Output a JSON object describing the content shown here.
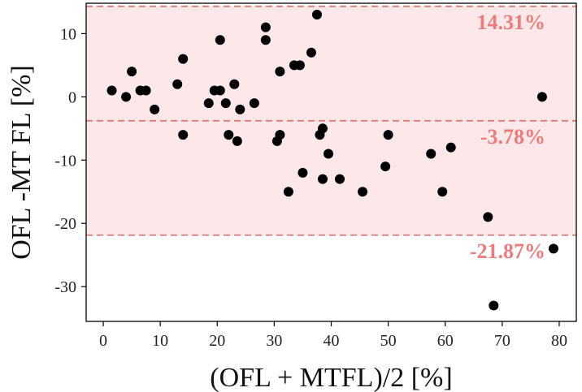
{
  "chart_data": {
    "type": "scatter",
    "title": "",
    "xlabel": "(OFL + MTFL)/2 [%]",
    "ylabel": "OFL -MT FL [%]",
    "xlim": [
      -3,
      83
    ],
    "ylim": [
      -35.5,
      14.8
    ],
    "xticks": [
      0,
      10,
      20,
      30,
      40,
      50,
      60,
      70,
      80
    ],
    "yticks": [
      10,
      0,
      -10,
      -20,
      -30
    ],
    "grid": false,
    "points": [
      {
        "x": 1.5,
        "y": 1
      },
      {
        "x": 4,
        "y": 0
      },
      {
        "x": 5,
        "y": 4
      },
      {
        "x": 6.5,
        "y": 1
      },
      {
        "x": 7.5,
        "y": 1
      },
      {
        "x": 9,
        "y": -2
      },
      {
        "x": 13,
        "y": 2
      },
      {
        "x": 14,
        "y": 6
      },
      {
        "x": 14,
        "y": -6
      },
      {
        "x": 18.5,
        "y": -1
      },
      {
        "x": 19.5,
        "y": 1
      },
      {
        "x": 20.5,
        "y": 1
      },
      {
        "x": 20.5,
        "y": 9
      },
      {
        "x": 21.5,
        "y": -1
      },
      {
        "x": 22,
        "y": -6
      },
      {
        "x": 23,
        "y": 2
      },
      {
        "x": 23.5,
        "y": -7
      },
      {
        "x": 24,
        "y": -2
      },
      {
        "x": 26.5,
        "y": -1
      },
      {
        "x": 28.5,
        "y": 11
      },
      {
        "x": 28.5,
        "y": 9
      },
      {
        "x": 30.5,
        "y": -7
      },
      {
        "x": 31,
        "y": 4
      },
      {
        "x": 31,
        "y": -6
      },
      {
        "x": 32.5,
        "y": -15
      },
      {
        "x": 33.5,
        "y": 5
      },
      {
        "x": 34.5,
        "y": 5
      },
      {
        "x": 35,
        "y": -12
      },
      {
        "x": 36.5,
        "y": 7
      },
      {
        "x": 37.5,
        "y": 13
      },
      {
        "x": 38,
        "y": -6
      },
      {
        "x": 38.5,
        "y": -5
      },
      {
        "x": 38.5,
        "y": -13
      },
      {
        "x": 39.5,
        "y": -9
      },
      {
        "x": 41.5,
        "y": -13
      },
      {
        "x": 45.5,
        "y": -15
      },
      {
        "x": 49.5,
        "y": -11
      },
      {
        "x": 50,
        "y": -6
      },
      {
        "x": 57.5,
        "y": -9
      },
      {
        "x": 59.5,
        "y": -15
      },
      {
        "x": 61,
        "y": -8
      },
      {
        "x": 67.5,
        "y": -19
      },
      {
        "x": 68.5,
        "y": -33
      },
      {
        "x": 77,
        "y": 0
      },
      {
        "x": 79,
        "y": -24
      }
    ],
    "reference_lines": [
      {
        "y": 14.31,
        "label": "14.31%"
      },
      {
        "y": -3.78,
        "label": "-3.78%"
      },
      {
        "y": -21.87,
        "label": "-21.87%"
      }
    ],
    "band": {
      "from": -21.87,
      "to": 14.31
    },
    "colors": {
      "points": "#000000",
      "reference_line": "#e07a78",
      "reference_label": "#ee7b7b",
      "band_fill": "#fce8e8",
      "axis": "#000000"
    }
  }
}
